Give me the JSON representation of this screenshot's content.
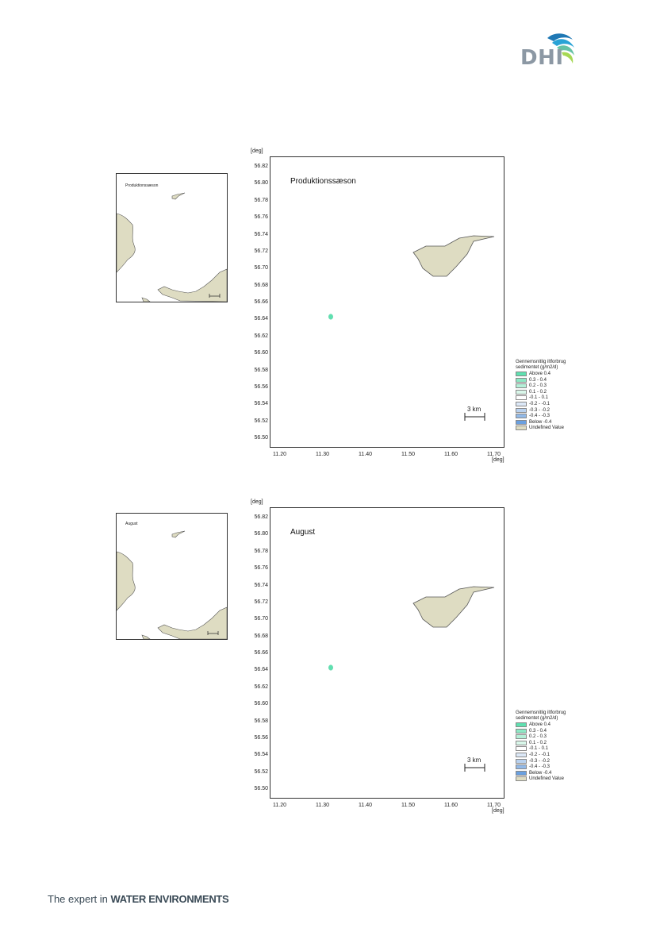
{
  "header": {
    "logo_text": "DHI",
    "logo_colors": [
      "#1f78b4",
      "#29a3d6",
      "#66c2a5",
      "#a6d854"
    ]
  },
  "footer": {
    "tagline_prefix": "The expert in",
    "tagline_bold": "WATER ENVIRONMENTS"
  },
  "maps": [
    {
      "title": "Produktionssæson",
      "inset_label": "Produktionssæson",
      "scale_label": "3 km",
      "y_unit": "[deg]",
      "x_unit": "[deg]",
      "y_ticks": [
        "56.82",
        "56.80",
        "56.78",
        "56.76",
        "56.74",
        "56.72",
        "56.70",
        "56.68",
        "56.66",
        "56.64",
        "56.62",
        "56.60",
        "56.58",
        "56.56",
        "56.54",
        "56.52",
        "56.50"
      ],
      "x_ticks": [
        "11.20",
        "11.30",
        "11.40",
        "11.50",
        "11.60",
        "11.70"
      ],
      "legend": {
        "title": "Gennemsnitlig iltforbrug sedimentet (g/m2/d)",
        "items": [
          {
            "label": "Above  0.4",
            "color": "#5fe0b0"
          },
          {
            "label": "0.3 -  0.4",
            "color": "#8ee8c5"
          },
          {
            "label": "0.2 -  0.3",
            "color": "#b5f0d8"
          },
          {
            "label": "0.1 -  0.2",
            "color": "#d9f7ea"
          },
          {
            "label": "-0.1 -  0.1",
            "color": "#ffffff"
          },
          {
            "label": "-0.2 - -0.1",
            "color": "#dce8f7"
          },
          {
            "label": "-0.3 - -0.2",
            "color": "#b9d2f0"
          },
          {
            "label": "-0.4 - -0.3",
            "color": "#93bae8"
          },
          {
            "label": "Below -0.4",
            "color": "#6aa0e0"
          },
          {
            "label": "Undefined Value",
            "color": "#dedcc2"
          }
        ]
      }
    },
    {
      "title": "August",
      "inset_label": "August",
      "scale_label": "3 km",
      "y_unit": "[deg]",
      "x_unit": "[deg]",
      "y_ticks": [
        "56.82",
        "56.80",
        "56.78",
        "56.76",
        "56.74",
        "56.72",
        "56.70",
        "56.68",
        "56.66",
        "56.64",
        "56.62",
        "56.60",
        "56.58",
        "56.56",
        "56.54",
        "56.52",
        "56.50"
      ],
      "x_ticks": [
        "11.20",
        "11.30",
        "11.40",
        "11.50",
        "11.60",
        "11.70"
      ],
      "legend": {
        "title": "Gennemsnitlig iltforbrug sedimentet (g/m2/d)",
        "items": [
          {
            "label": "Above  0.4",
            "color": "#5fe0b0"
          },
          {
            "label": "0.3 -  0.4",
            "color": "#8ee8c5"
          },
          {
            "label": "0.2 -  0.3",
            "color": "#b5f0d8"
          },
          {
            "label": "0.1 -  0.2",
            "color": "#d9f7ea"
          },
          {
            "label": "-0.1 -  0.1",
            "color": "#ffffff"
          },
          {
            "label": "-0.2 - -0.1",
            "color": "#dce8f7"
          },
          {
            "label": "-0.3 - -0.2",
            "color": "#b9d2f0"
          },
          {
            "label": "-0.4 - -0.3",
            "color": "#93bae8"
          },
          {
            "label": "Below -0.4",
            "color": "#6aa0e0"
          },
          {
            "label": "Undefined Value",
            "color": "#dedcc2"
          }
        ]
      }
    }
  ],
  "colors": {
    "land": "#dedcc2",
    "land_stroke": "#555555",
    "marker": "#5fe0b0",
    "frame": "#333333"
  }
}
